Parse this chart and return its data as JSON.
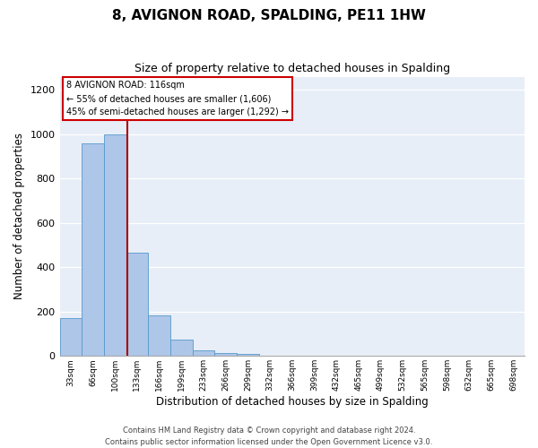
{
  "title": "8, AVIGNON ROAD, SPALDING, PE11 1HW",
  "subtitle": "Size of property relative to detached houses in Spalding",
  "xlabel": "Distribution of detached houses by size in Spalding",
  "ylabel": "Number of detached properties",
  "bin_labels": [
    "33sqm",
    "66sqm",
    "100sqm",
    "133sqm",
    "166sqm",
    "199sqm",
    "233sqm",
    "266sqm",
    "299sqm",
    "332sqm",
    "366sqm",
    "399sqm",
    "432sqm",
    "465sqm",
    "499sqm",
    "532sqm",
    "565sqm",
    "598sqm",
    "632sqm",
    "665sqm",
    "698sqm"
  ],
  "bar_values": [
    170,
    960,
    1000,
    465,
    185,
    75,
    25,
    15,
    10,
    0,
    0,
    0,
    0,
    0,
    0,
    0,
    0,
    0,
    0,
    0,
    0
  ],
  "bar_color": "#aec6e8",
  "bar_edge_color": "#5599cc",
  "ylim_max": 1260,
  "yticks": [
    0,
    200,
    400,
    600,
    800,
    1000,
    1200
  ],
  "annotation_title": "8 AVIGNON ROAD: 116sqm",
  "annotation_line1": "← 55% of detached houses are smaller (1,606)",
  "annotation_line2": "45% of semi-detached houses are larger (1,292) →",
  "annotation_box_facecolor": "#ffffff",
  "annotation_box_edgecolor": "#cc0000",
  "footer_line1": "Contains HM Land Registry data © Crown copyright and database right 2024.",
  "footer_line2": "Contains public sector information licensed under the Open Government Licence v3.0.",
  "vline_color": "#aa0000",
  "vline_position": 2.55,
  "bg_color": "#e8eef8",
  "title_fontsize": 11,
  "subtitle_fontsize": 9
}
